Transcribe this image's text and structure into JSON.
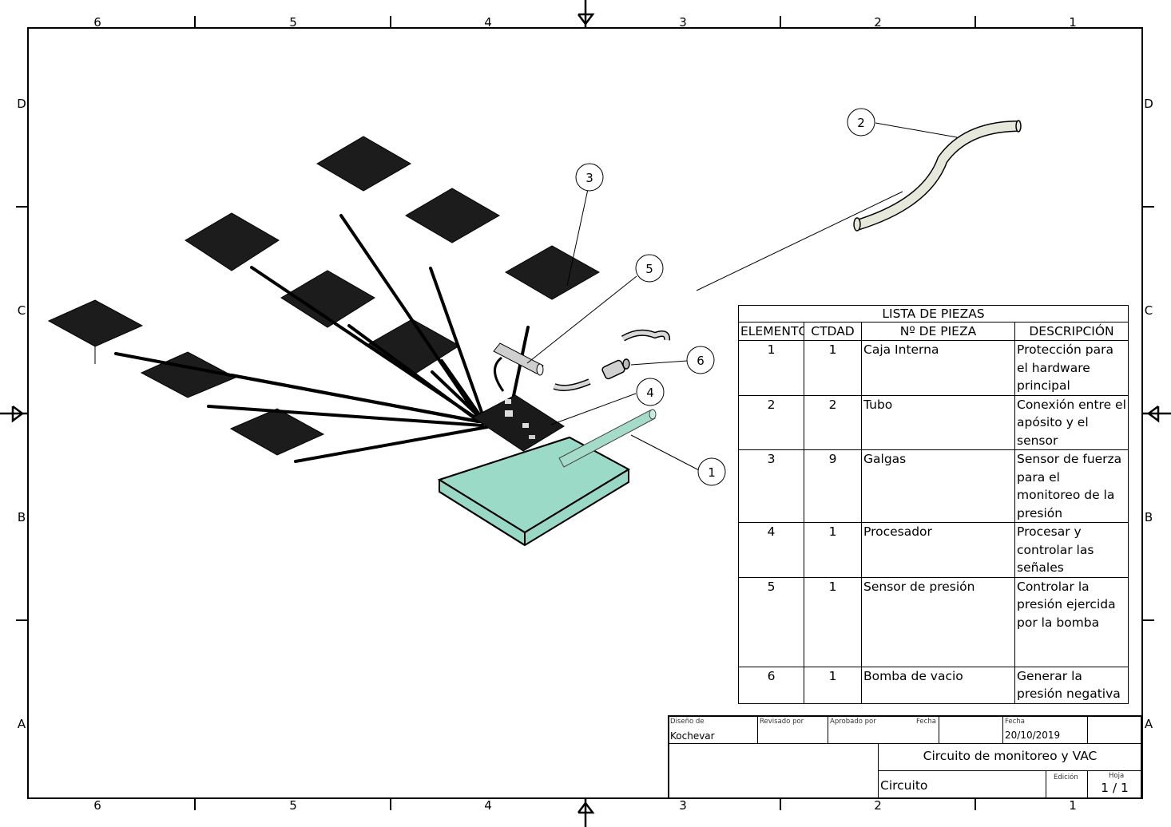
{
  "frame": {
    "columns": [
      "6",
      "5",
      "4",
      "3",
      "2",
      "1"
    ],
    "rows": [
      "D",
      "C",
      "B",
      "A"
    ]
  },
  "balloons": [
    "1",
    "2",
    "3",
    "4",
    "5",
    "6"
  ],
  "parts_list": {
    "title": "LISTA DE PIEZAS",
    "headers": {
      "element": "ELEMENTO",
      "qty": "CTDAD",
      "part_no": "Nº DE PIEZA",
      "description": "DESCRIPCIÓN"
    },
    "rows": [
      {
        "element": "1",
        "qty": "1",
        "part_no": "Caja Interna",
        "description": "Protección para el hardware principal"
      },
      {
        "element": "2",
        "qty": "2",
        "part_no": "Tubo",
        "description": "Conexión entre el apósito y el sensor"
      },
      {
        "element": "3",
        "qty": "9",
        "part_no": "Galgas",
        "description": "Sensor de fuerza para el monitoreo de la presión"
      },
      {
        "element": "4",
        "qty": "1",
        "part_no": "Procesador",
        "description": "Procesar y controlar las señales"
      },
      {
        "element": "5",
        "qty": "1",
        "part_no": "Sensor de presión",
        "description": "Controlar la presión ejercida por la bomba"
      },
      {
        "element": "6",
        "qty": "1",
        "part_no": "Bomba de vacio",
        "description": "Generar la presión negativa"
      }
    ]
  },
  "title_block": {
    "designed_by_label": "Diseño de",
    "designed_by": "Kochevar",
    "reviewed_by_label": "Revisado por",
    "approved_by_label": "Aprobado por",
    "date_label_1": "Fecha",
    "date_label_2": "Fecha",
    "date": "20/10/2019",
    "title": "Circuito de monitoreo y VAC",
    "subtitle": "Circuito",
    "edition_label": "Edición",
    "sheet_label": "Hoja",
    "sheet": "1 / 1"
  },
  "colors": {
    "pad": "#1c1c1c",
    "case_fill": "#98d8c4",
    "tube_fill": "#e7e8dc",
    "outline": "#000000"
  }
}
